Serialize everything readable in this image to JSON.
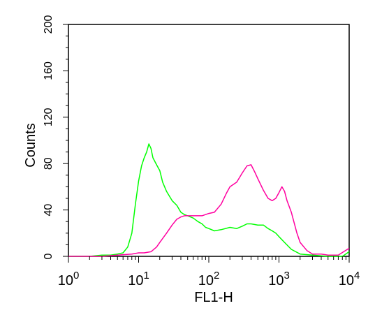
{
  "chart_data": {
    "type": "line",
    "xlabel": "FL1-H",
    "ylabel": "Counts",
    "x_scale": "log",
    "xlim": [
      1,
      10000
    ],
    "ylim": [
      0,
      200
    ],
    "x_ticks": [
      {
        "value": 1,
        "base": "10",
        "exp": "0"
      },
      {
        "value": 10,
        "base": "10",
        "exp": "1"
      },
      {
        "value": 100,
        "base": "10",
        "exp": "2"
      },
      {
        "value": 1000,
        "base": "10",
        "exp": "3"
      },
      {
        "value": 10000,
        "base": "10",
        "exp": "4"
      }
    ],
    "y_ticks": [
      {
        "value": 0,
        "label": "0"
      },
      {
        "value": 40,
        "label": "40"
      },
      {
        "value": 80,
        "label": "80"
      },
      {
        "value": 120,
        "label": "120"
      },
      {
        "value": 160,
        "label": "160"
      },
      {
        "value": 200,
        "label": "200"
      }
    ],
    "grid": false,
    "series": [
      {
        "color": "#00ff00",
        "points": [
          [
            1,
            0
          ],
          [
            2,
            0
          ],
          [
            3,
            1
          ],
          [
            4,
            1
          ],
          [
            5,
            2
          ],
          [
            6,
            3
          ],
          [
            7,
            8
          ],
          [
            8,
            20
          ],
          [
            9,
            45
          ],
          [
            10,
            65
          ],
          [
            11,
            78
          ],
          [
            12,
            85
          ],
          [
            13,
            90
          ],
          [
            14,
            97
          ],
          [
            15,
            93
          ],
          [
            16,
            85
          ],
          [
            18,
            79
          ],
          [
            20,
            74
          ],
          [
            22,
            64
          ],
          [
            25,
            56
          ],
          [
            30,
            48
          ],
          [
            35,
            44
          ],
          [
            40,
            38
          ],
          [
            45,
            36
          ],
          [
            50,
            35
          ],
          [
            60,
            33
          ],
          [
            70,
            30
          ],
          [
            80,
            28
          ],
          [
            90,
            25
          ],
          [
            100,
            24
          ],
          [
            120,
            22
          ],
          [
            150,
            23
          ],
          [
            200,
            25
          ],
          [
            250,
            24
          ],
          [
            300,
            26
          ],
          [
            350,
            28
          ],
          [
            400,
            28
          ],
          [
            500,
            27
          ],
          [
            600,
            27
          ],
          [
            700,
            24
          ],
          [
            800,
            22
          ],
          [
            900,
            20
          ],
          [
            1000,
            17
          ],
          [
            1200,
            12
          ],
          [
            1500,
            6
          ],
          [
            2000,
            2
          ],
          [
            3000,
            1
          ],
          [
            5000,
            0
          ],
          [
            8000,
            0
          ],
          [
            10000,
            4
          ]
        ]
      },
      {
        "color": "#ff00a0",
        "points": [
          [
            1,
            0
          ],
          [
            3,
            0
          ],
          [
            5,
            1
          ],
          [
            8,
            2
          ],
          [
            10,
            3
          ],
          [
            12,
            3
          ],
          [
            15,
            4
          ],
          [
            18,
            8
          ],
          [
            20,
            12
          ],
          [
            25,
            20
          ],
          [
            30,
            27
          ],
          [
            35,
            32
          ],
          [
            40,
            34
          ],
          [
            45,
            35
          ],
          [
            50,
            35
          ],
          [
            60,
            35
          ],
          [
            70,
            35
          ],
          [
            80,
            35
          ],
          [
            100,
            37
          ],
          [
            120,
            38
          ],
          [
            150,
            45
          ],
          [
            180,
            55
          ],
          [
            200,
            60
          ],
          [
            250,
            64
          ],
          [
            300,
            72
          ],
          [
            350,
            78
          ],
          [
            400,
            79
          ],
          [
            450,
            73
          ],
          [
            500,
            67
          ],
          [
            600,
            57
          ],
          [
            700,
            50
          ],
          [
            800,
            48
          ],
          [
            900,
            50
          ],
          [
            1000,
            55
          ],
          [
            1100,
            60
          ],
          [
            1200,
            56
          ],
          [
            1300,
            48
          ],
          [
            1500,
            38
          ],
          [
            1800,
            20
          ],
          [
            2000,
            12
          ],
          [
            2500,
            5
          ],
          [
            3000,
            2
          ],
          [
            4000,
            2
          ],
          [
            5000,
            1
          ],
          [
            7000,
            1
          ],
          [
            10000,
            7
          ]
        ]
      }
    ]
  }
}
